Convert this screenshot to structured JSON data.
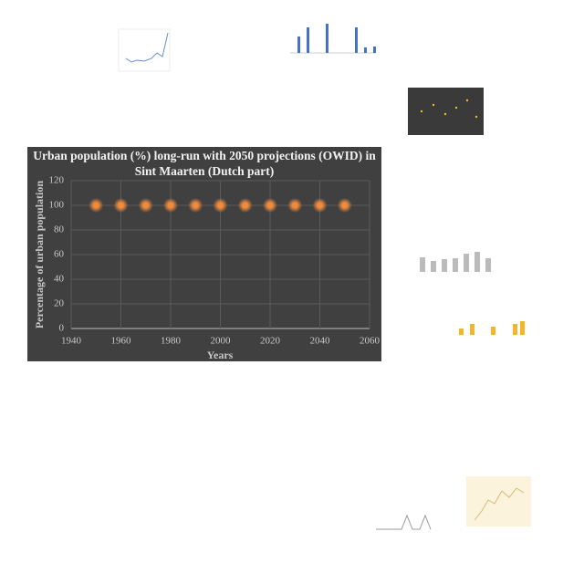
{
  "chart_data": {
    "type": "scatter",
    "title_lines": [
      "Urban population (%) long-run with 2050 projections (OWID) in",
      "Sint Maarten (Dutch part)"
    ],
    "x_label": "Years",
    "y_label": "Percentage of urban population",
    "x": [
      1950,
      1960,
      1970,
      1980,
      1990,
      2000,
      2010,
      2020,
      2030,
      2040,
      2050
    ],
    "values": [
      100,
      100,
      100,
      100,
      100,
      100,
      100,
      100,
      100,
      100,
      100
    ],
    "color": "#f08a3c",
    "xlim": [
      1940,
      2060
    ],
    "xticks": [
      1940,
      1960,
      1980,
      2000,
      2020,
      2040,
      2060
    ],
    "ylim": [
      0,
      120
    ],
    "yticks": [
      0,
      20,
      40,
      60,
      80,
      100,
      120
    ],
    "grid": true
  }
}
